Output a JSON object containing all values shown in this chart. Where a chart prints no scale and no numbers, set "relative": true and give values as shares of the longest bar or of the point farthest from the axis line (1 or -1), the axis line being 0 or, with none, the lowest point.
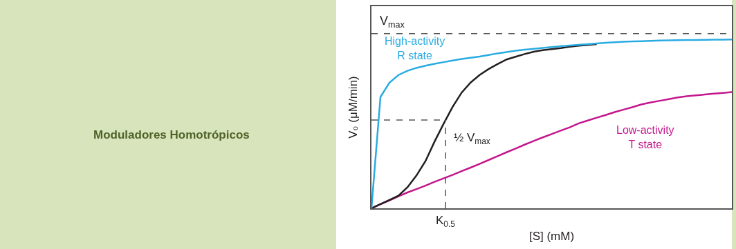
{
  "chart_data": {
    "type": "line",
    "relative": true,
    "title": "Moduladores Homotrópicos",
    "xlabel": "[S] (mM)",
    "ylabel": "V₀ (μM/min)",
    "categories": [
      null,
      null,
      null,
      null,
      null,
      null,
      null,
      null,
      null,
      null,
      null,
      null,
      null,
      null,
      null,
      null,
      null,
      null,
      null,
      null,
      null,
      null,
      null,
      null,
      null,
      null,
      null,
      null,
      null,
      null,
      null,
      null,
      null,
      null,
      null,
      null,
      null,
      null,
      null,
      null,
      null
    ],
    "series": [
      {
        "name": "High-activity R state",
        "color": "#29abe2",
        "values": [
          0,
          0.66,
          0.745,
          0.79,
          0.815,
          0.832,
          0.845,
          0.856,
          0.866,
          0.876,
          0.885,
          0.892,
          0.899,
          0.908,
          0.918,
          0.926,
          0.934,
          0.94,
          0.945,
          0.95,
          0.955,
          0.96,
          0.965,
          0.969,
          0.973,
          0.977,
          0.981,
          0.984,
          0.987,
          0.989,
          0.99,
          0.992,
          0.994,
          0.995,
          0.996,
          0.997,
          0.997,
          0.998,
          0.999,
          0.999,
          1
        ]
      },
      {
        "color": "#231f20",
        "values": [
          0,
          0.025,
          0.05,
          0.075,
          0.125,
          0.195,
          0.28,
          0.395,
          0.5,
          0.6,
          0.685,
          0.745,
          0.79,
          0.825,
          0.855,
          0.882,
          0.898,
          0.914,
          0.928,
          0.937,
          0.943,
          0.949,
          0.957,
          0.963,
          0.968,
          0.973,
          null,
          null,
          null,
          null,
          null,
          null,
          null,
          null,
          null,
          null,
          null,
          null,
          null,
          null,
          null
        ]
      },
      {
        "name": "Low-activity T state",
        "color": "#c4168c",
        "values": [
          0,
          0.024,
          0.047,
          0.071,
          0.094,
          0.114,
          0.134,
          0.157,
          0.177,
          0.198,
          0.22,
          0.241,
          0.263,
          0.286,
          0.309,
          0.332,
          0.354,
          0.377,
          0.399,
          0.42,
          0.44,
          0.46,
          0.48,
          0.503,
          0.52,
          0.537,
          0.553,
          0.57,
          0.585,
          0.6,
          0.616,
          0.627,
          0.637,
          0.647,
          0.657,
          0.664,
          0.669,
          0.674,
          0.679,
          0.684,
          0.689
        ]
      }
    ],
    "ref_lines": [
      {
        "axis": "y",
        "value": 1.035,
        "label": "V$_{max}$",
        "color": "#555555",
        "line_style": "dashed"
      },
      {
        "axis": "y",
        "value": 0.523,
        "label": "½ V$_{max}$",
        "color": "#555555",
        "line_style": "dashed"
      }
    ],
    "annotations": [
      "K$_{0.5}$"
    ],
    "marker": "none",
    "line_style": "solid",
    "grid": false,
    "legend": false
  }
}
